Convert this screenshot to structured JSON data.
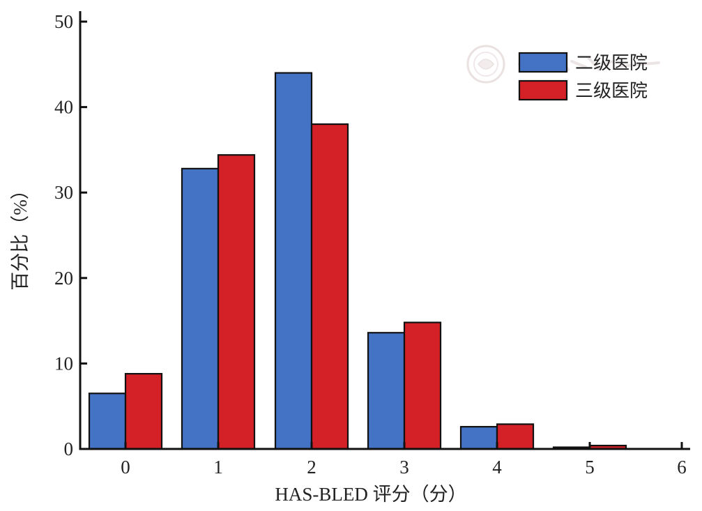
{
  "chart_data": {
    "type": "bar",
    "categories": [
      "0",
      "1",
      "2",
      "3",
      "4",
      "5",
      "6"
    ],
    "series": [
      {
        "name": "二级医院",
        "color": "#4472C4",
        "values": [
          6.5,
          32.8,
          44.0,
          13.6,
          2.6,
          0.2,
          0.0
        ]
      },
      {
        "name": "三级医院",
        "color": "#D42027",
        "values": [
          8.8,
          34.4,
          38.0,
          14.8,
          2.9,
          0.4,
          0.0
        ]
      }
    ],
    "xlabel": "HAS-BLED 评分（分）",
    "ylabel": "百分比（%）",
    "ylim": [
      0,
      50
    ],
    "yticks": [
      "0",
      "10",
      "20",
      "30",
      "40",
      "50"
    ],
    "grid": false,
    "legend_position": "top-right"
  }
}
